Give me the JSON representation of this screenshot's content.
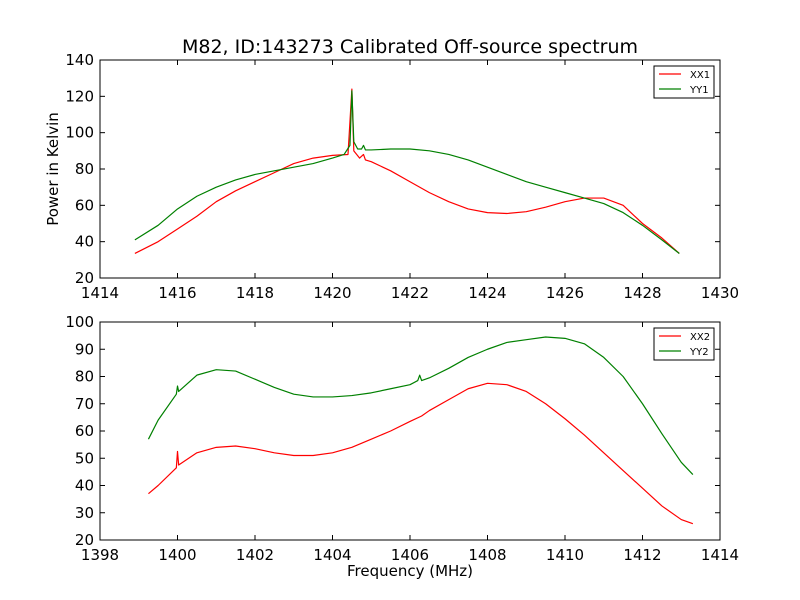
{
  "chart_data": [
    {
      "type": "line",
      "title": "M82, ID:143273 Calibrated Off-source spectrum",
      "xlabel": "",
      "ylabel": "Power in Kelvin",
      "xlim": [
        1414,
        1430
      ],
      "ylim": [
        20,
        140
      ],
      "xticks": [
        1414,
        1416,
        1418,
        1420,
        1422,
        1424,
        1426,
        1428,
        1430
      ],
      "yticks": [
        20,
        40,
        60,
        80,
        100,
        120,
        140
      ],
      "grid": false,
      "legend_position": "top-right",
      "series": [
        {
          "name": "XX1",
          "color": "#ff0000",
          "points": [
            [
              1414.9,
              33.5
            ],
            [
              1415.5,
              40
            ],
            [
              1416,
              47
            ],
            [
              1416.5,
              54
            ],
            [
              1417,
              62
            ],
            [
              1417.5,
              68
            ],
            [
              1418,
              73
            ],
            [
              1418.5,
              78
            ],
            [
              1419,
              83
            ],
            [
              1419.5,
              86
            ],
            [
              1420,
              87.5
            ],
            [
              1420.4,
              88
            ],
            [
              1420.5,
              124
            ],
            [
              1420.55,
              90
            ],
            [
              1420.7,
              86
            ],
            [
              1420.8,
              88
            ],
            [
              1420.85,
              85
            ],
            [
              1421,
              84
            ],
            [
              1421.5,
              79
            ],
            [
              1422,
              73
            ],
            [
              1422.5,
              67
            ],
            [
              1423,
              62
            ],
            [
              1423.5,
              58
            ],
            [
              1424,
              56
            ],
            [
              1424.5,
              55.5
            ],
            [
              1425,
              56.5
            ],
            [
              1425.5,
              59
            ],
            [
              1426,
              62
            ],
            [
              1426.5,
              64
            ],
            [
              1427,
              64
            ],
            [
              1427.5,
              60
            ],
            [
              1428,
              50
            ],
            [
              1428.5,
              42
            ],
            [
              1428.95,
              33.5
            ]
          ]
        },
        {
          "name": "YY1",
          "color": "#008000",
          "points": [
            [
              1414.9,
              41
            ],
            [
              1415.5,
              49
            ],
            [
              1416,
              58
            ],
            [
              1416.5,
              65
            ],
            [
              1417,
              70
            ],
            [
              1417.5,
              74
            ],
            [
              1418,
              77
            ],
            [
              1418.5,
              79
            ],
            [
              1419,
              81
            ],
            [
              1419.5,
              83
            ],
            [
              1420,
              86
            ],
            [
              1420.3,
              88
            ],
            [
              1420.45,
              93
            ],
            [
              1420.5,
              123
            ],
            [
              1420.55,
              95
            ],
            [
              1420.65,
              91
            ],
            [
              1420.75,
              91
            ],
            [
              1420.8,
              93
            ],
            [
              1420.85,
              90.5
            ],
            [
              1421,
              90.5
            ],
            [
              1421.5,
              91
            ],
            [
              1422,
              91
            ],
            [
              1422.5,
              90
            ],
            [
              1423,
              88
            ],
            [
              1423.5,
              85
            ],
            [
              1424,
              81
            ],
            [
              1424.5,
              77
            ],
            [
              1425,
              73
            ],
            [
              1425.5,
              70
            ],
            [
              1426,
              67
            ],
            [
              1426.5,
              64
            ],
            [
              1427,
              61
            ],
            [
              1427.5,
              56
            ],
            [
              1428,
              49
            ],
            [
              1428.5,
              41
            ],
            [
              1428.95,
              33.5
            ]
          ]
        }
      ]
    },
    {
      "type": "line",
      "title": "",
      "xlabel": "Frequency (MHz)",
      "ylabel": "",
      "xlim": [
        1398,
        1414
      ],
      "ylim": [
        20,
        100
      ],
      "xticks": [
        1398,
        1400,
        1402,
        1404,
        1406,
        1408,
        1410,
        1412,
        1414
      ],
      "yticks": [
        20,
        30,
        40,
        50,
        60,
        70,
        80,
        90,
        100
      ],
      "grid": false,
      "legend_position": "top-right",
      "series": [
        {
          "name": "XX2",
          "color": "#ff0000",
          "points": [
            [
              1399.25,
              37
            ],
            [
              1399.5,
              40
            ],
            [
              1399.97,
              46.5
            ],
            [
              1400,
              52.5
            ],
            [
              1400.03,
              47.5
            ],
            [
              1400.5,
              52
            ],
            [
              1401,
              54
            ],
            [
              1401.5,
              54.5
            ],
            [
              1402,
              53.5
            ],
            [
              1402.5,
              52
            ],
            [
              1403,
              51
            ],
            [
              1403.5,
              51
            ],
            [
              1404,
              52
            ],
            [
              1404.5,
              54
            ],
            [
              1405,
              57
            ],
            [
              1405.5,
              60
            ],
            [
              1406,
              63.5
            ],
            [
              1406.3,
              65.5
            ],
            [
              1406.5,
              67.5
            ],
            [
              1407,
              71.5
            ],
            [
              1407.5,
              75.5
            ],
            [
              1408,
              77.5
            ],
            [
              1408.5,
              77
            ],
            [
              1409,
              74.5
            ],
            [
              1409.5,
              70
            ],
            [
              1410,
              64.5
            ],
            [
              1410.5,
              58.5
            ],
            [
              1411,
              52
            ],
            [
              1411.5,
              45.5
            ],
            [
              1412,
              39
            ],
            [
              1412.5,
              32.5
            ],
            [
              1413,
              27.5
            ],
            [
              1413.3,
              26
            ]
          ]
        },
        {
          "name": "YY2",
          "color": "#008000",
          "points": [
            [
              1399.25,
              57
            ],
            [
              1399.5,
              64
            ],
            [
              1399.97,
              73.5
            ],
            [
              1400,
              76.5
            ],
            [
              1400.03,
              74.5
            ],
            [
              1400.5,
              80.5
            ],
            [
              1401,
              82.5
            ],
            [
              1401.5,
              82
            ],
            [
              1402,
              79
            ],
            [
              1402.5,
              76
            ],
            [
              1403,
              73.5
            ],
            [
              1403.5,
              72.5
            ],
            [
              1404,
              72.5
            ],
            [
              1404.5,
              73
            ],
            [
              1405,
              74
            ],
            [
              1405.5,
              75.5
            ],
            [
              1406,
              77
            ],
            [
              1406.2,
              78.5
            ],
            [
              1406.25,
              80.5
            ],
            [
              1406.3,
              78.5
            ],
            [
              1406.5,
              79.5
            ],
            [
              1407,
              83
            ],
            [
              1407.5,
              87
            ],
            [
              1408,
              90
            ],
            [
              1408.5,
              92.5
            ],
            [
              1409,
              93.5
            ],
            [
              1409.5,
              94.5
            ],
            [
              1410,
              94
            ],
            [
              1410.5,
              92
            ],
            [
              1411,
              87
            ],
            [
              1411.5,
              80
            ],
            [
              1412,
              70
            ],
            [
              1412.5,
              59
            ],
            [
              1413,
              48.5
            ],
            [
              1413.3,
              44
            ]
          ]
        }
      ]
    }
  ]
}
